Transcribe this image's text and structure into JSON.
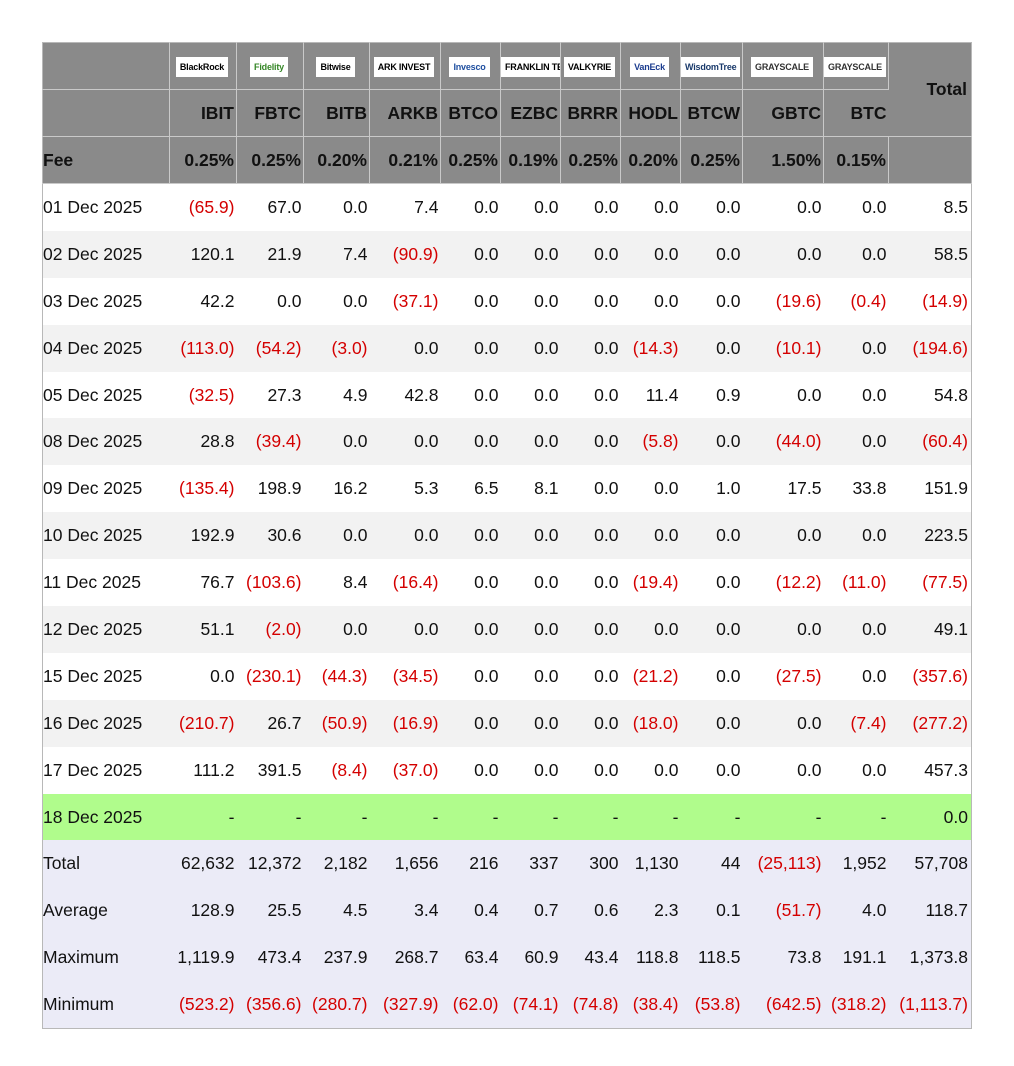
{
  "header": {
    "fee_label": "Fee",
    "total_label": "Total",
    "funds": [
      {
        "logo": "BlackRock",
        "ticker": "IBIT",
        "fee": "0.25%",
        "brand_color": "#000000"
      },
      {
        "logo": "Fidelity",
        "ticker": "FBTC",
        "fee": "0.25%",
        "brand_color": "#368727"
      },
      {
        "logo": "Bitwise",
        "ticker": "BITB",
        "fee": "0.20%",
        "brand_color": "#000000"
      },
      {
        "logo": "ARK INVEST",
        "ticker": "ARKB",
        "fee": "0.21%",
        "brand_color": "#000000"
      },
      {
        "logo": "Invesco",
        "ticker": "BTCO",
        "fee": "0.25%",
        "brand_color": "#1f4fa0"
      },
      {
        "logo": "FRANKLIN TEMPLETON",
        "ticker": "EZBC",
        "fee": "0.19%",
        "brand_color": "#000000"
      },
      {
        "logo": "VALKYRIE",
        "ticker": "BRRR",
        "fee": "0.25%",
        "brand_color": "#000000"
      },
      {
        "logo": "VanEck",
        "ticker": "HODL",
        "fee": "0.20%",
        "brand_color": "#1b3c8f"
      },
      {
        "logo": "WisdomTree",
        "ticker": "BTCW",
        "fee": "0.25%",
        "brand_color": "#1a3a6b"
      },
      {
        "logo": "GRAYSCALE",
        "ticker": "GBTC",
        "fee": "1.50%",
        "brand_color": "#333333"
      },
      {
        "logo": "GRAYSCALE",
        "ticker": "BTC",
        "fee": "0.15%",
        "brand_color": "#333333"
      }
    ]
  },
  "rows": [
    {
      "date": "01 Dec 2025",
      "values": [
        "(65.9)",
        "67.0",
        "0.0",
        "7.4",
        "0.0",
        "0.0",
        "0.0",
        "0.0",
        "0.0",
        "0.0",
        "0.0"
      ],
      "total": "8.5"
    },
    {
      "date": "02 Dec 2025",
      "values": [
        "120.1",
        "21.9",
        "7.4",
        "(90.9)",
        "0.0",
        "0.0",
        "0.0",
        "0.0",
        "0.0",
        "0.0",
        "0.0"
      ],
      "total": "58.5"
    },
    {
      "date": "03 Dec 2025",
      "values": [
        "42.2",
        "0.0",
        "0.0",
        "(37.1)",
        "0.0",
        "0.0",
        "0.0",
        "0.0",
        "0.0",
        "(19.6)",
        "(0.4)"
      ],
      "total": "(14.9)"
    },
    {
      "date": "04 Dec 2025",
      "values": [
        "(113.0)",
        "(54.2)",
        "(3.0)",
        "0.0",
        "0.0",
        "0.0",
        "0.0",
        "(14.3)",
        "0.0",
        "(10.1)",
        "0.0"
      ],
      "total": "(194.6)"
    },
    {
      "date": "05 Dec 2025",
      "values": [
        "(32.5)",
        "27.3",
        "4.9",
        "42.8",
        "0.0",
        "0.0",
        "0.0",
        "11.4",
        "0.9",
        "0.0",
        "0.0"
      ],
      "total": "54.8"
    },
    {
      "date": "08 Dec 2025",
      "values": [
        "28.8",
        "(39.4)",
        "0.0",
        "0.0",
        "0.0",
        "0.0",
        "0.0",
        "(5.8)",
        "0.0",
        "(44.0)",
        "0.0"
      ],
      "total": "(60.4)"
    },
    {
      "date": "09 Dec 2025",
      "values": [
        "(135.4)",
        "198.9",
        "16.2",
        "5.3",
        "6.5",
        "8.1",
        "0.0",
        "0.0",
        "1.0",
        "17.5",
        "33.8"
      ],
      "total": "151.9"
    },
    {
      "date": "10 Dec 2025",
      "values": [
        "192.9",
        "30.6",
        "0.0",
        "0.0",
        "0.0",
        "0.0",
        "0.0",
        "0.0",
        "0.0",
        "0.0",
        "0.0"
      ],
      "total": "223.5"
    },
    {
      "date": "11 Dec 2025",
      "values": [
        "76.7",
        "(103.6)",
        "8.4",
        "(16.4)",
        "0.0",
        "0.0",
        "0.0",
        "(19.4)",
        "0.0",
        "(12.2)",
        "(11.0)"
      ],
      "total": "(77.5)"
    },
    {
      "date": "12 Dec 2025",
      "values": [
        "51.1",
        "(2.0)",
        "0.0",
        "0.0",
        "0.0",
        "0.0",
        "0.0",
        "0.0",
        "0.0",
        "0.0",
        "0.0"
      ],
      "total": "49.1"
    },
    {
      "date": "15 Dec 2025",
      "values": [
        "0.0",
        "(230.1)",
        "(44.3)",
        "(34.5)",
        "0.0",
        "0.0",
        "0.0",
        "(21.2)",
        "0.0",
        "(27.5)",
        "0.0"
      ],
      "total": "(357.6)"
    },
    {
      "date": "16 Dec 2025",
      "values": [
        "(210.7)",
        "26.7",
        "(50.9)",
        "(16.9)",
        "0.0",
        "0.0",
        "0.0",
        "(18.0)",
        "0.0",
        "0.0",
        "(7.4)"
      ],
      "total": "(277.2)"
    },
    {
      "date": "17 Dec 2025",
      "values": [
        "111.2",
        "391.5",
        "(8.4)",
        "(37.0)",
        "0.0",
        "0.0",
        "0.0",
        "0.0",
        "0.0",
        "0.0",
        "0.0"
      ],
      "total": "457.3"
    },
    {
      "date": "18 Dec 2025",
      "values": [
        "-",
        "-",
        "-",
        "-",
        "-",
        "-",
        "-",
        "-",
        "-",
        "-",
        "-"
      ],
      "total": "0.0",
      "highlight": true
    }
  ],
  "summary": [
    {
      "label": "Total",
      "values": [
        "62,632",
        "12,372",
        "2,182",
        "1,656",
        "216",
        "337",
        "300",
        "1,130",
        "44",
        "(25,113)",
        "1,952"
      ],
      "total": "57,708"
    },
    {
      "label": "Average",
      "values": [
        "128.9",
        "25.5",
        "4.5",
        "3.4",
        "0.4",
        "0.7",
        "0.6",
        "2.3",
        "0.1",
        "(51.7)",
        "4.0"
      ],
      "total": "118.7"
    },
    {
      "label": "Maximum",
      "values": [
        "1,119.9",
        "473.4",
        "237.9",
        "268.7",
        "63.4",
        "60.9",
        "43.4",
        "118.8",
        "118.5",
        "73.8",
        "191.1"
      ],
      "total": "1,373.8"
    },
    {
      "label": "Minimum",
      "values": [
        "(523.2)",
        "(356.6)",
        "(280.7)",
        "(327.9)",
        "(62.0)",
        "(74.1)",
        "(74.8)",
        "(38.4)",
        "(53.8)",
        "(642.5)",
        "(318.2)"
      ],
      "total": "(1,113.7)"
    }
  ],
  "colors": {
    "header_bg": "#8a8a8a",
    "negative": "#d40000",
    "highlight_row": "#b0fc8c",
    "summary_bg": "#ebebf7",
    "stripe": "#f2f2f2"
  }
}
